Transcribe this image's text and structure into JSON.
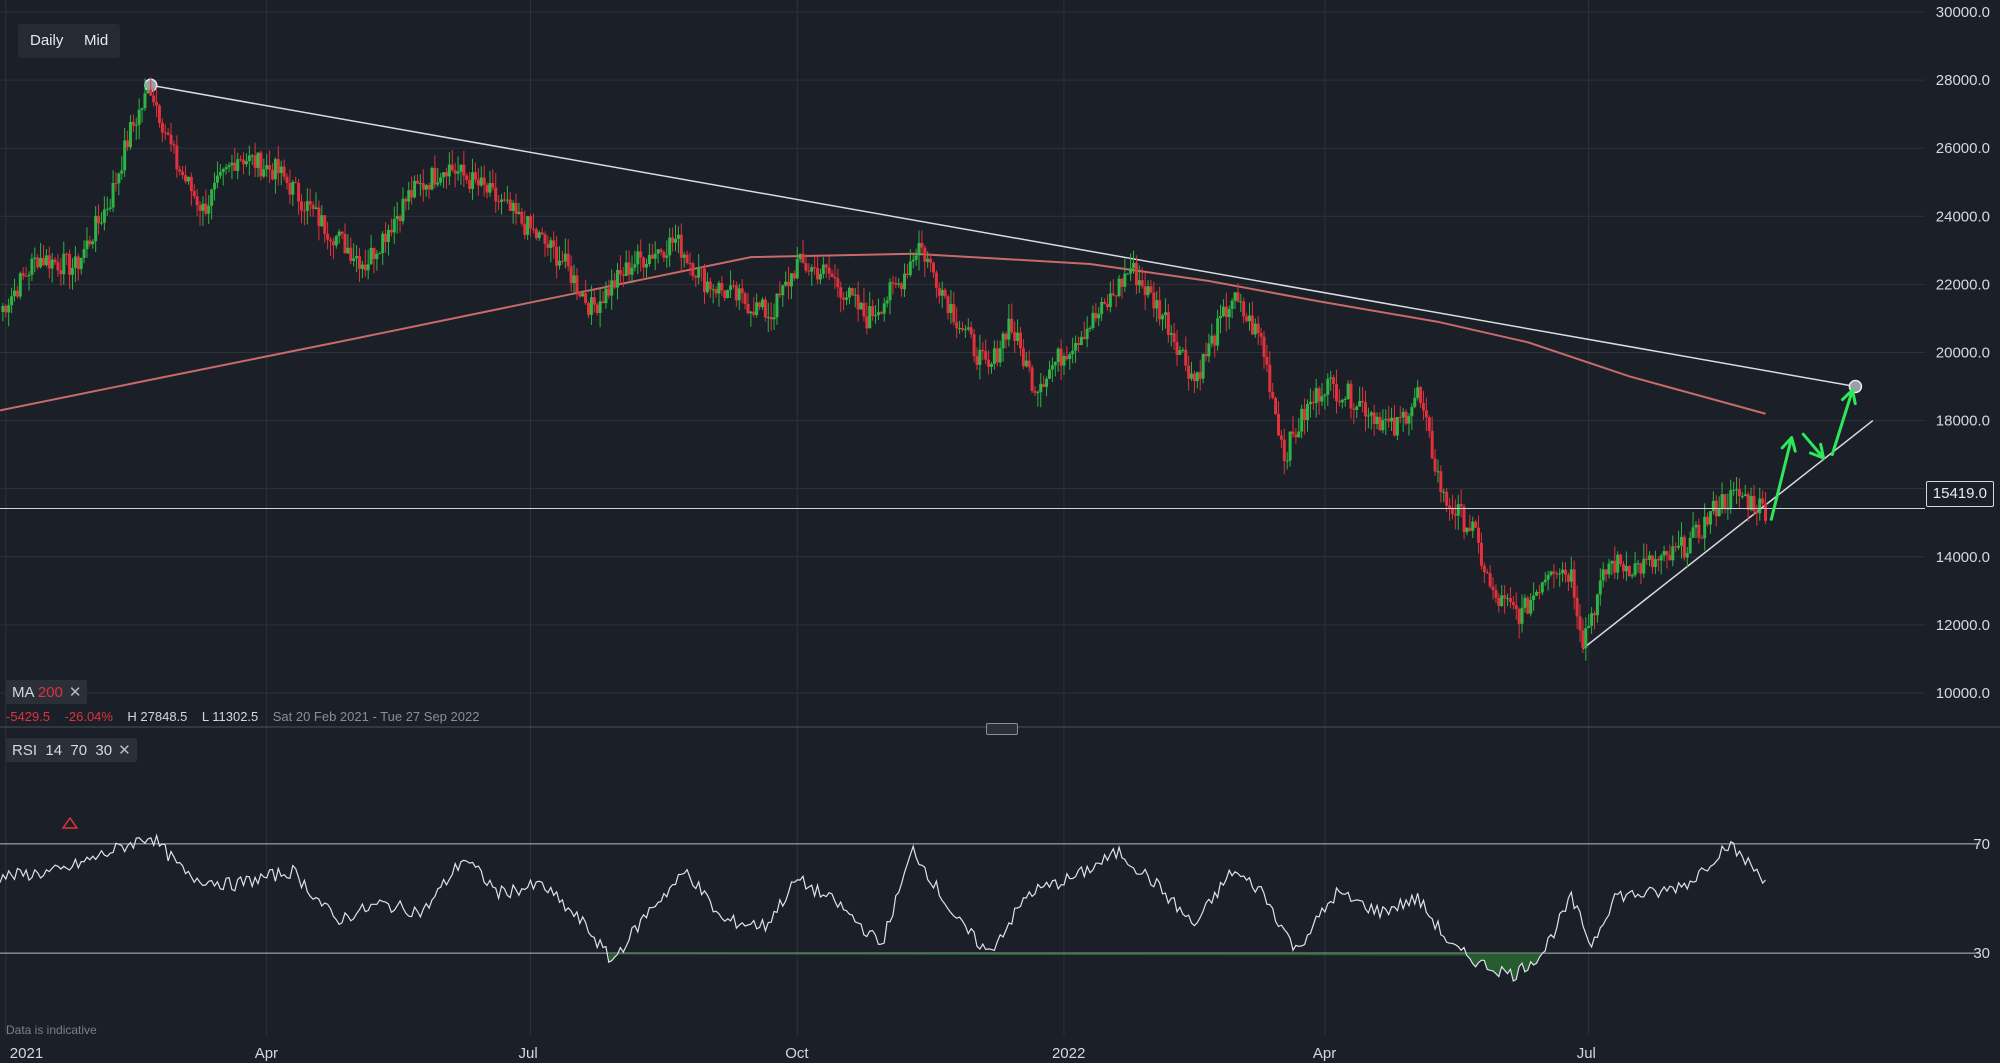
{
  "toolbar": {
    "interval": "Daily",
    "price_type": "Mid"
  },
  "ma_hud": {
    "name": "MA",
    "period": "200"
  },
  "stats": {
    "change": "-5429.5",
    "change_pct": "-26.04%",
    "high": "H 27848.5",
    "low": "L 11302.5",
    "range": "Sat 20 Feb 2021 - Tue 27 Sep 2022"
  },
  "rsi_hud": {
    "name": "RSI",
    "period": "14",
    "upper": "70",
    "lower": "30"
  },
  "footer_note": "Data is indicative",
  "current_price_label": "15419.0",
  "colors": {
    "background": "#1b1f27",
    "grid": "#2d323b",
    "up": "#2fb344",
    "down": "#e0323c",
    "ma": "#c86a6a",
    "trendline": "#d9dce1",
    "arrow": "#2ee65a",
    "rsi": "#dfe2e7"
  },
  "chart_data": [
    {
      "type": "candlestick",
      "title": "",
      "ylim": [
        9000,
        30000
      ],
      "y_ticks": [
        "30000.0",
        "28000.0",
        "26000.0",
        "24000.0",
        "22000.0",
        "20000.0",
        "18000.0",
        "16000.0",
        "14000.0",
        "12000.0",
        "10000.0"
      ],
      "x_ticks": [
        {
          "date": "2021-01-01",
          "label": "2021"
        },
        {
          "date": "2021-04-01",
          "label": "Apr"
        },
        {
          "date": "2021-07-01",
          "label": "Jul"
        },
        {
          "date": "2021-10-01",
          "label": "Oct"
        },
        {
          "date": "2022-01-01",
          "label": "2022"
        },
        {
          "date": "2022-04-01",
          "label": "Apr"
        },
        {
          "date": "2022-07-01",
          "label": "Jul"
        }
      ],
      "x_range": [
        "2020-12-30",
        "2022-10-25"
      ],
      "grid": true,
      "close_path": [
        [
          "2020-12-30",
          21200
        ],
        [
          "2021-01-12",
          22800
        ],
        [
          "2021-01-25",
          22500
        ],
        [
          "2021-02-06",
          24500
        ],
        [
          "2021-02-13",
          26500
        ],
        [
          "2021-02-20",
          27800
        ],
        [
          "2021-03-01",
          25500
        ],
        [
          "2021-03-10",
          24200
        ],
        [
          "2021-03-22",
          25800
        ],
        [
          "2021-04-05",
          25300
        ],
        [
          "2021-04-20",
          23800
        ],
        [
          "2021-05-05",
          22600
        ],
        [
          "2021-05-20",
          24600
        ],
        [
          "2021-06-02",
          25500
        ],
        [
          "2021-06-15",
          24800
        ],
        [
          "2021-07-01",
          23600
        ],
        [
          "2021-07-12",
          22700
        ],
        [
          "2021-07-22",
          21300
        ],
        [
          "2021-08-05",
          22600
        ],
        [
          "2021-08-20",
          23300
        ],
        [
          "2021-08-30",
          22100
        ],
        [
          "2021-09-08",
          21700
        ],
        [
          "2021-09-22",
          21100
        ],
        [
          "2021-10-01",
          22600
        ],
        [
          "2021-10-12",
          22300
        ],
        [
          "2021-10-25",
          21000
        ],
        [
          "2021-11-05",
          22000
        ],
        [
          "2021-11-12",
          23200
        ],
        [
          "2021-11-25",
          21000
        ],
        [
          "2021-12-06",
          19400
        ],
        [
          "2021-12-13",
          20900
        ],
        [
          "2021-12-22",
          19000
        ],
        [
          "2022-01-05",
          20400
        ],
        [
          "2022-01-15",
          21300
        ],
        [
          "2022-01-24",
          22500
        ],
        [
          "2022-02-05",
          21000
        ],
        [
          "2022-02-15",
          19200
        ],
        [
          "2022-02-28",
          21600
        ],
        [
          "2022-03-10",
          20400
        ],
        [
          "2022-03-18",
          17000
        ],
        [
          "2022-03-25",
          18200
        ],
        [
          "2022-04-01",
          19100
        ],
        [
          "2022-04-12",
          18600
        ],
        [
          "2022-04-25",
          17700
        ],
        [
          "2022-05-03",
          18800
        ],
        [
          "2022-05-12",
          15700
        ],
        [
          "2022-05-22",
          14800
        ],
        [
          "2022-05-29",
          12800
        ],
        [
          "2022-06-08",
          12300
        ],
        [
          "2022-06-18",
          13800
        ],
        [
          "2022-06-25",
          13500
        ],
        [
          "2022-06-29",
          11600
        ],
        [
          "2022-07-08",
          13800
        ],
        [
          "2022-07-18",
          13700
        ],
        [
          "2022-07-28",
          13900
        ],
        [
          "2022-08-07",
          14600
        ],
        [
          "2022-08-15",
          15600
        ],
        [
          "2022-08-22",
          15800
        ],
        [
          "2022-08-31",
          15400
        ]
      ],
      "ma200": {
        "name": "MA 200",
        "points": [
          [
            "2020-12-30",
            18300
          ],
          [
            "2021-02-20",
            19200
          ],
          [
            "2021-05-01",
            20400
          ],
          [
            "2021-07-20",
            21800
          ],
          [
            "2021-09-15",
            22800
          ],
          [
            "2021-11-10",
            22900
          ],
          [
            "2022-01-10",
            22600
          ],
          [
            "2022-02-20",
            22100
          ],
          [
            "2022-03-30",
            21500
          ],
          [
            "2022-05-10",
            20900
          ],
          [
            "2022-06-10",
            20300
          ],
          [
            "2022-07-15",
            19300
          ],
          [
            "2022-08-31",
            18200
          ]
        ]
      },
      "trendlines": [
        {
          "name": "downtrend",
          "from": [
            "2021-02-20",
            27848.5
          ],
          "to": [
            "2022-10-01",
            19000
          ],
          "end_markers": true
        },
        {
          "name": "uptrend",
          "from": [
            "2022-06-29",
            11302.5
          ],
          "to": [
            "2022-10-07",
            18000
          ],
          "end_markers": false
        }
      ],
      "horizontal_line": {
        "value": 15419.0,
        "label": "15419.0"
      },
      "projection_arrows": [
        [
          [
            "2022-09-02",
            15100
          ],
          [
            "2022-09-09",
            17500
          ]
        ],
        [
          [
            "2022-09-13",
            17600
          ],
          [
            "2022-09-20",
            16900
          ]
        ],
        [
          [
            "2022-09-23",
            17000
          ],
          [
            "2022-09-30",
            18900
          ]
        ]
      ],
      "highlights": {
        "high": 27848.5,
        "low": 11302.5,
        "change": -5429.5,
        "change_pct": -26.04
      }
    },
    {
      "type": "line",
      "title": "",
      "name": "RSI 14",
      "ylim": [
        0,
        100
      ],
      "levels": [
        70,
        30
      ],
      "y_ticks": [
        "70",
        "30"
      ],
      "x_range": [
        "2020-12-30",
        "2022-10-25"
      ],
      "points": [
        [
          "2020-12-30",
          58
        ],
        [
          "2021-01-20",
          60
        ],
        [
          "2021-02-20",
          73
        ],
        [
          "2021-03-05",
          58
        ],
        [
          "2021-03-20",
          55
        ],
        [
          "2021-04-10",
          60
        ],
        [
          "2021-04-25",
          42
        ],
        [
          "2021-05-10",
          48
        ],
        [
          "2021-05-25",
          45
        ],
        [
          "2021-06-08",
          65
        ],
        [
          "2021-06-20",
          52
        ],
        [
          "2021-07-05",
          55
        ],
        [
          "2021-07-20",
          40
        ],
        [
          "2021-07-29",
          27
        ],
        [
          "2021-08-12",
          47
        ],
        [
          "2021-08-24",
          60
        ],
        [
          "2021-09-05",
          42
        ],
        [
          "2021-09-20",
          40
        ],
        [
          "2021-10-01",
          57
        ],
        [
          "2021-10-15",
          48
        ],
        [
          "2021-10-30",
          33
        ],
        [
          "2021-11-10",
          68
        ],
        [
          "2021-11-25",
          42
        ],
        [
          "2021-12-06",
          30
        ],
        [
          "2021-12-20",
          52
        ],
        [
          "2022-01-05",
          58
        ],
        [
          "2022-01-20",
          67
        ],
        [
          "2022-02-02",
          55
        ],
        [
          "2022-02-15",
          40
        ],
        [
          "2022-02-28",
          60
        ],
        [
          "2022-03-10",
          53
        ],
        [
          "2022-03-22",
          31
        ],
        [
          "2022-04-05",
          52
        ],
        [
          "2022-04-20",
          45
        ],
        [
          "2022-05-03",
          50
        ],
        [
          "2022-05-15",
          32
        ],
        [
          "2022-05-25",
          26
        ],
        [
          "2022-06-05",
          22
        ],
        [
          "2022-06-15",
          30
        ],
        [
          "2022-06-25",
          50
        ],
        [
          "2022-07-02",
          33
        ],
        [
          "2022-07-10",
          51
        ],
        [
          "2022-07-25",
          52
        ],
        [
          "2022-08-05",
          56
        ],
        [
          "2022-08-18",
          70
        ],
        [
          "2022-08-31",
          57
        ]
      ]
    }
  ]
}
